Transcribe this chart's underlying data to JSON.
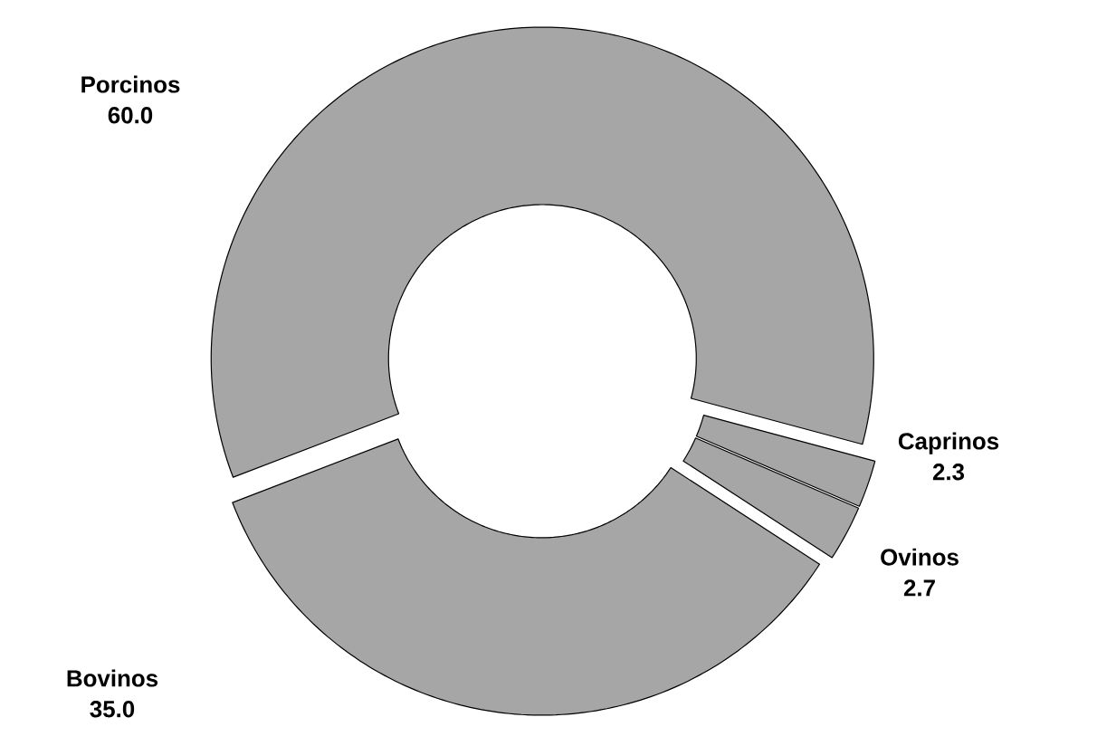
{
  "chart_data": {
    "type": "donut",
    "categories": [
      "Porcinos",
      "Caprinos",
      "Ovinos",
      "Bovinos"
    ],
    "values": [
      60.0,
      2.3,
      2.7,
      35.0
    ],
    "colors": [
      "#a6a6a6",
      "#a6a6a6",
      "#a6a6a6",
      "#a6a6a6"
    ],
    "value_labels": [
      "60.0",
      "2.3",
      "2.7",
      "35.0"
    ]
  }
}
